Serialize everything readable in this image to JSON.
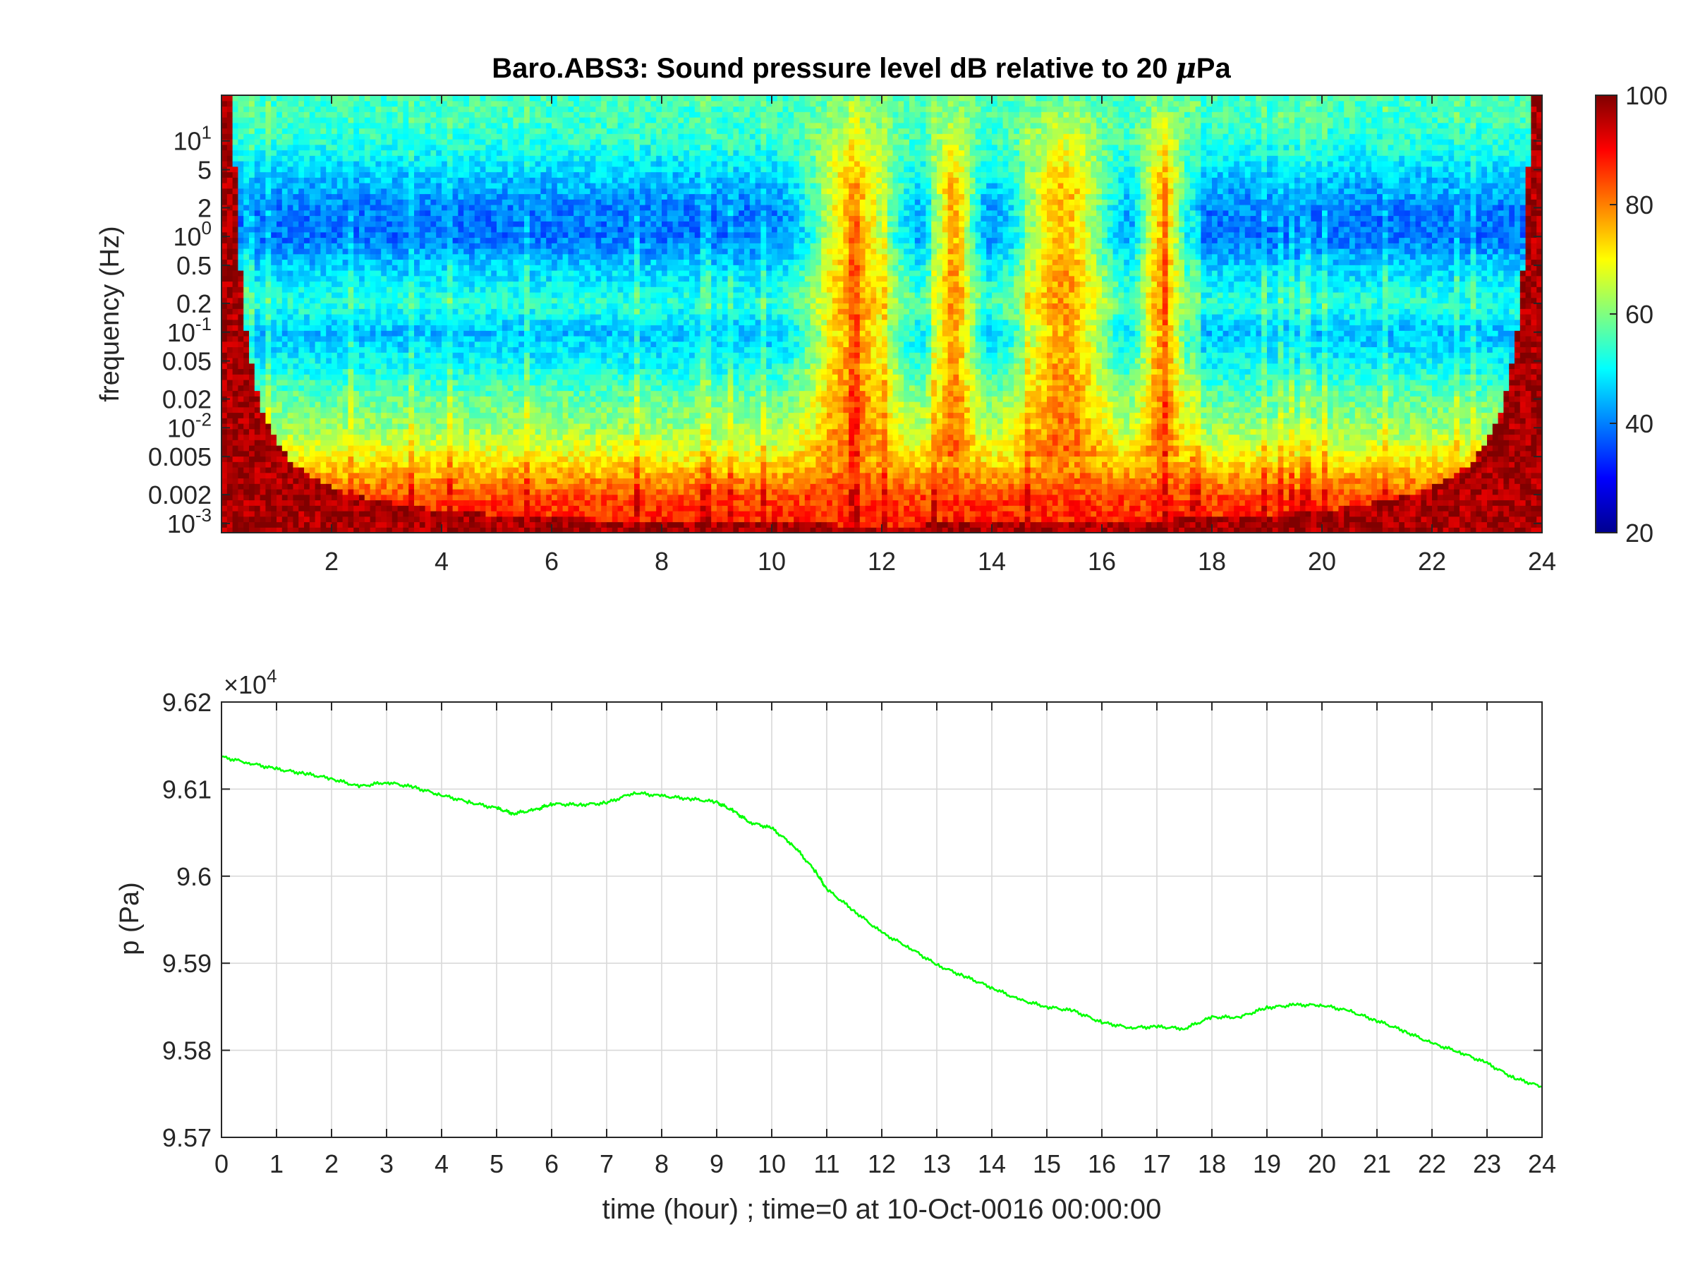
{
  "chart_data": [
    {
      "type": "heatmap",
      "title_pre": "Baro.ABS3: Sound pressure level dB relative to 20 ",
      "title_greek": "μ",
      "title_post": "Pa",
      "ylabel": "frequency (Hz)",
      "yscale": "log",
      "ylim": [
        0.0008,
        30
      ],
      "xlim": [
        0,
        24
      ],
      "xticks": [
        2,
        4,
        6,
        8,
        10,
        12,
        14,
        16,
        18,
        20,
        22,
        24
      ],
      "yticks": [
        {
          "value": 10,
          "base": "10",
          "exp": "1"
        },
        {
          "value": 5,
          "label": "5"
        },
        {
          "value": 2,
          "label": "2"
        },
        {
          "value": 1,
          "base": "10",
          "exp": "0"
        },
        {
          "value": 0.5,
          "label": "0.5"
        },
        {
          "value": 0.2,
          "label": "0.2"
        },
        {
          "value": 0.1,
          "base": "10",
          "exp": "-1"
        },
        {
          "value": 0.05,
          "label": "0.05"
        },
        {
          "value": 0.02,
          "label": "0.02"
        },
        {
          "value": 0.01,
          "base": "10",
          "exp": "-2"
        },
        {
          "value": 0.005,
          "label": "0.005"
        },
        {
          "value": 0.002,
          "label": "0.002"
        },
        {
          "value": 0.001,
          "base": "10",
          "exp": "-3"
        }
      ],
      "colorbar": {
        "colormap": "jet",
        "limits": [
          20,
          100
        ],
        "ticks": [
          20,
          40,
          60,
          80,
          100
        ]
      },
      "features": {
        "background_by_frequency_dB": [
          {
            "f": 20,
            "dB": 55
          },
          {
            "f": 10,
            "dB": 53
          },
          {
            "f": 5,
            "dB": 47
          },
          {
            "f": 2,
            "dB": 40
          },
          {
            "f": 1,
            "dB": 39
          },
          {
            "f": 0.5,
            "dB": 46
          },
          {
            "f": 0.2,
            "dB": 53
          },
          {
            "f": 0.1,
            "dB": 45
          },
          {
            "f": 0.05,
            "dB": 50
          },
          {
            "f": 0.02,
            "dB": 58
          },
          {
            "f": 0.01,
            "dB": 62
          },
          {
            "f": 0.005,
            "dB": 70
          },
          {
            "f": 0.002,
            "dB": 84
          },
          {
            "f": 0.001,
            "dB": 88
          }
        ],
        "high_activity_periods_hours": [
          [
            10.5,
            12.5
          ],
          [
            12.8,
            13.8
          ],
          [
            14.3,
            16.3
          ],
          [
            16.6,
            17.6
          ]
        ],
        "peak_level_dB": 95
      }
    },
    {
      "type": "line",
      "ylabel": "p (Pa)",
      "xlabel": "time (hour) ; time=0 at 10-Oct-0016 00:00:00",
      "multiplier": {
        "prefix": "×10",
        "exp": "4"
      },
      "xlim": [
        0,
        24
      ],
      "ylim": [
        9.57,
        9.62
      ],
      "xticks": [
        0,
        1,
        2,
        3,
        4,
        5,
        6,
        7,
        8,
        9,
        10,
        11,
        12,
        13,
        14,
        15,
        16,
        17,
        18,
        19,
        20,
        21,
        22,
        23,
        24
      ],
      "yticks": [
        {
          "value": 9.57,
          "label": "9.57"
        },
        {
          "value": 9.58,
          "label": "9.58"
        },
        {
          "value": 9.59,
          "label": "9.59"
        },
        {
          "value": 9.6,
          "label": "9.6"
        },
        {
          "value": 9.61,
          "label": "9.61"
        },
        {
          "value": 9.62,
          "label": "9.62"
        }
      ],
      "grid": true,
      "series": [
        {
          "color": "#00ff00",
          "x": [
            0,
            0.5,
            1,
            1.5,
            2,
            2.5,
            3,
            3.5,
            4,
            4.5,
            5,
            5.3,
            5.7,
            6,
            6.5,
            7,
            7.5,
            8,
            8.5,
            9,
            9.3,
            9.6,
            10,
            10.4,
            10.8,
            11,
            11.5,
            12,
            12.5,
            13,
            13.5,
            14,
            14.5,
            15,
            15.5,
            16,
            16.5,
            17,
            17.5,
            18,
            18.5,
            19,
            19.5,
            20,
            20.5,
            21,
            21.5,
            22,
            22.5,
            23,
            23.5,
            24
          ],
          "y": [
            9.6137,
            9.613,
            9.6123,
            9.6118,
            9.6112,
            9.6103,
            9.6108,
            9.6102,
            9.6093,
            9.6085,
            9.6078,
            9.6072,
            9.6076,
            9.6083,
            9.6082,
            9.6084,
            9.6096,
            9.6092,
            9.6089,
            9.6085,
            9.6075,
            9.6062,
            9.6055,
            9.6035,
            9.6005,
            9.5985,
            9.596,
            9.5935,
            9.5918,
            9.5898,
            9.5885,
            9.5872,
            9.5858,
            9.585,
            9.5845,
            9.5832,
            9.5826,
            9.5827,
            9.5825,
            9.5838,
            9.5838,
            9.5849,
            9.5852,
            9.5852,
            9.5845,
            9.5834,
            9.5822,
            9.5808,
            9.5798,
            9.5785,
            9.5768,
            9.5758
          ]
        }
      ]
    }
  ]
}
